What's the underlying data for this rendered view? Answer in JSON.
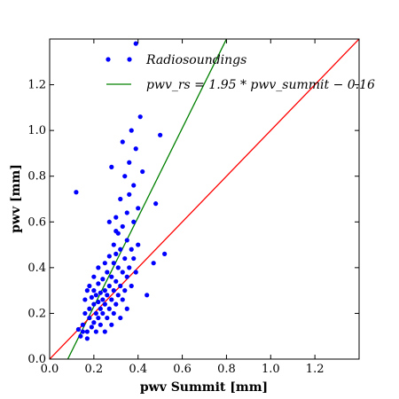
{
  "chart_data": {
    "type": "scatter",
    "title": "",
    "xlabel": "pwv Summit [mm]",
    "ylabel": "pwv [mm]",
    "xlim": [
      0.0,
      1.4
    ],
    "ylim": [
      0.0,
      1.4
    ],
    "xticks": [
      "0.0",
      "0.2",
      "0.4",
      "0.6",
      "0.8",
      "1.0",
      "1.2"
    ],
    "yticks": [
      "0.0",
      "0.2",
      "0.4",
      "0.6",
      "0.8",
      "1.0",
      "1.2"
    ],
    "xtick_values": [
      0.0,
      0.2,
      0.4,
      0.6,
      0.8,
      1.0,
      1.2
    ],
    "ytick_values": [
      0.0,
      0.2,
      0.4,
      0.6,
      0.8,
      1.0,
      1.2
    ],
    "grid": false,
    "legend_position": "top",
    "legend": [
      {
        "name": "Radiosoundings",
        "kind": "points",
        "color": "#0000ff"
      },
      {
        "name": "pwv_rs = 1.95 * pwv_summit − 0.16",
        "kind": "line",
        "color": "#008000"
      }
    ],
    "series": [
      {
        "name": "Radiosoundings",
        "type": "scatter",
        "color": "#0000ff",
        "points": [
          [
            0.12,
            0.73
          ],
          [
            0.13,
            0.13
          ],
          [
            0.14,
            0.1
          ],
          [
            0.15,
            0.15
          ],
          [
            0.15,
            0.12
          ],
          [
            0.16,
            0.2
          ],
          [
            0.16,
            0.26
          ],
          [
            0.17,
            0.12
          ],
          [
            0.17,
            0.3
          ],
          [
            0.17,
            0.09
          ],
          [
            0.18,
            0.18
          ],
          [
            0.18,
            0.22
          ],
          [
            0.18,
            0.32
          ],
          [
            0.19,
            0.14
          ],
          [
            0.19,
            0.27
          ],
          [
            0.2,
            0.16
          ],
          [
            0.2,
            0.24
          ],
          [
            0.2,
            0.3
          ],
          [
            0.2,
            0.36
          ],
          [
            0.21,
            0.12
          ],
          [
            0.21,
            0.2
          ],
          [
            0.21,
            0.28
          ],
          [
            0.22,
            0.18
          ],
          [
            0.22,
            0.25
          ],
          [
            0.22,
            0.33
          ],
          [
            0.22,
            0.4
          ],
          [
            0.23,
            0.15
          ],
          [
            0.23,
            0.22
          ],
          [
            0.23,
            0.29
          ],
          [
            0.24,
            0.2
          ],
          [
            0.24,
            0.26
          ],
          [
            0.24,
            0.35
          ],
          [
            0.25,
            0.12
          ],
          [
            0.25,
            0.24
          ],
          [
            0.25,
            0.3
          ],
          [
            0.25,
            0.42
          ],
          [
            0.26,
            0.18
          ],
          [
            0.26,
            0.28
          ],
          [
            0.26,
            0.38
          ],
          [
            0.27,
            0.22
          ],
          [
            0.27,
            0.32
          ],
          [
            0.27,
            0.45
          ],
          [
            0.28,
            0.15
          ],
          [
            0.28,
            0.26
          ],
          [
            0.28,
            0.36
          ],
          [
            0.29,
            0.2
          ],
          [
            0.29,
            0.3
          ],
          [
            0.29,
            0.42
          ],
          [
            0.29,
            0.5
          ],
          [
            0.3,
            0.24
          ],
          [
            0.3,
            0.34
          ],
          [
            0.3,
            0.46
          ],
          [
            0.3,
            0.62
          ],
          [
            0.31,
            0.28
          ],
          [
            0.31,
            0.4
          ],
          [
            0.31,
            0.55
          ],
          [
            0.32,
            0.18
          ],
          [
            0.32,
            0.32
          ],
          [
            0.32,
            0.48
          ],
          [
            0.32,
            0.7
          ],
          [
            0.33,
            0.26
          ],
          [
            0.33,
            0.38
          ],
          [
            0.33,
            0.58
          ],
          [
            0.33,
            0.95
          ],
          [
            0.34,
            0.3
          ],
          [
            0.34,
            0.44
          ],
          [
            0.34,
            0.8
          ],
          [
            0.35,
            0.22
          ],
          [
            0.35,
            0.36
          ],
          [
            0.35,
            0.52
          ],
          [
            0.35,
            0.64
          ],
          [
            0.36,
            0.4
          ],
          [
            0.36,
            0.72
          ],
          [
            0.36,
            0.86
          ],
          [
            0.37,
            0.32
          ],
          [
            0.37,
            0.48
          ],
          [
            0.37,
            1.0
          ],
          [
            0.38,
            0.44
          ],
          [
            0.38,
            0.6
          ],
          [
            0.38,
            0.76
          ],
          [
            0.39,
            0.38
          ],
          [
            0.39,
            0.92
          ],
          [
            0.4,
            0.5
          ],
          [
            0.4,
            0.66
          ],
          [
            0.41,
            1.06
          ],
          [
            0.42,
            0.82
          ],
          [
            0.44,
            0.28
          ],
          [
            0.47,
            0.42
          ],
          [
            0.48,
            0.68
          ],
          [
            0.5,
            0.98
          ],
          [
            0.52,
            0.46
          ],
          [
            0.39,
            1.38
          ],
          [
            0.28,
            0.84
          ],
          [
            0.3,
            0.56
          ],
          [
            0.27,
            0.6
          ]
        ]
      },
      {
        "name": "Fit line (slope 1.95, intercept -0.16)",
        "type": "line",
        "color": "#008000",
        "x": [
          0.082,
          0.8
        ],
        "y": [
          0.0,
          1.4
        ]
      },
      {
        "name": "One-to-one line",
        "type": "line",
        "color": "#ff0000",
        "x": [
          0.0,
          1.4
        ],
        "y": [
          0.0,
          1.4
        ]
      }
    ]
  }
}
